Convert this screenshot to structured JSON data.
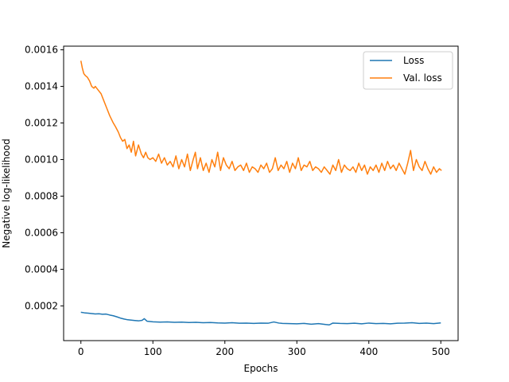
{
  "chart_data": {
    "type": "line",
    "title": "",
    "xlabel": "Epochs",
    "ylabel": "Negative log-likelihood",
    "xlim": [
      -24,
      524
    ],
    "ylim": [
      1e-05,
      0.00162
    ],
    "x_ticks": [
      0,
      100,
      200,
      300,
      400,
      500
    ],
    "y_ticks": [
      0.0002,
      0.0004,
      0.0006,
      0.0008,
      0.001,
      0.0012,
      0.0014,
      0.0016
    ],
    "x_tick_labels": [
      "0",
      "100",
      "200",
      "300",
      "400",
      "500"
    ],
    "y_tick_labels": [
      "0.0002",
      "0.0004",
      "0.0006",
      "0.0008",
      "0.0010",
      "0.0012",
      "0.0014",
      "0.0016"
    ],
    "grid": false,
    "legend_position": "top-right",
    "series": [
      {
        "name": "Loss",
        "color": "#1f77b4",
        "x": [
          0,
          5,
          10,
          15,
          20,
          25,
          30,
          35,
          40,
          45,
          50,
          55,
          60,
          65,
          70,
          75,
          80,
          85,
          88,
          92,
          100,
          110,
          120,
          130,
          140,
          150,
          160,
          170,
          180,
          190,
          200,
          210,
          220,
          230,
          240,
          250,
          260,
          268,
          275,
          280,
          290,
          300,
          310,
          320,
          330,
          340,
          345,
          350,
          360,
          370,
          380,
          390,
          400,
          410,
          420,
          430,
          440,
          450,
          460,
          470,
          480,
          490,
          500
        ],
        "y": [
          0.000165,
          0.000162,
          0.00016,
          0.000158,
          0.000156,
          0.000157,
          0.000154,
          0.000155,
          0.00015,
          0.000146,
          0.00014,
          0.000133,
          0.000128,
          0.000124,
          0.000122,
          0.00012,
          0.000118,
          0.000121,
          0.00013,
          0.000116,
          0.000113,
          0.000111,
          0.000112,
          0.00011,
          0.000111,
          0.000109,
          0.00011,
          0.000108,
          0.000109,
          0.000107,
          0.000106,
          0.000108,
          0.000105,
          0.000106,
          0.000104,
          0.000106,
          0.000105,
          0.000112,
          0.000106,
          0.000104,
          0.000103,
          0.000102,
          0.000104,
          0.0001,
          0.000103,
          9.8e-05,
          9.6e-05,
          0.000106,
          0.000104,
          0.000103,
          0.000105,
          0.000102,
          0.000106,
          0.000103,
          0.000104,
          0.000102,
          0.000105,
          0.000106,
          0.000108,
          0.000104,
          0.000106,
          0.000103,
          0.000107
        ]
      },
      {
        "name": "Val. loss",
        "color": "#ff7f0e",
        "x": [
          0,
          2,
          4,
          6,
          9,
          12,
          15,
          18,
          20,
          24,
          28,
          32,
          36,
          40,
          45,
          48,
          52,
          55,
          58,
          61,
          64,
          67,
          70,
          73,
          76,
          80,
          84,
          87,
          90,
          93,
          96,
          100,
          104,
          108,
          112,
          116,
          120,
          124,
          128,
          132,
          136,
          140,
          144,
          148,
          152,
          156,
          159,
          162,
          166,
          170,
          174,
          178,
          182,
          186,
          190,
          194,
          198,
          202,
          206,
          210,
          214,
          218,
          222,
          226,
          230,
          234,
          238,
          242,
          246,
          250,
          254,
          258,
          262,
          266,
          270,
          274,
          278,
          282,
          286,
          290,
          294,
          298,
          302,
          306,
          310,
          314,
          318,
          322,
          326,
          330,
          334,
          338,
          342,
          346,
          350,
          354,
          358,
          362,
          366,
          370,
          374,
          378,
          382,
          386,
          390,
          394,
          398,
          402,
          406,
          410,
          414,
          418,
          422,
          426,
          430,
          434,
          438,
          442,
          446,
          450,
          454,
          458,
          462,
          466,
          470,
          474,
          478,
          482,
          486,
          490,
          494,
          498,
          501
        ],
        "y": [
          0.00154,
          0.0015,
          0.00147,
          0.00146,
          0.00145,
          0.00143,
          0.0014,
          0.00139,
          0.0014,
          0.00138,
          0.00136,
          0.00132,
          0.00128,
          0.00124,
          0.0012,
          0.00118,
          0.00115,
          0.00112,
          0.0011,
          0.00111,
          0.00106,
          0.00108,
          0.00104,
          0.0011,
          0.00102,
          0.00108,
          0.00103,
          0.00101,
          0.00104,
          0.00101,
          0.001,
          0.00101,
          0.00099,
          0.00103,
          0.00098,
          0.00101,
          0.00097,
          0.00099,
          0.00096,
          0.00102,
          0.00095,
          0.001,
          0.00096,
          0.00103,
          0.00094,
          0.001,
          0.00104,
          0.00095,
          0.00101,
          0.00094,
          0.00098,
          0.00093,
          0.001,
          0.00096,
          0.00104,
          0.00094,
          0.00101,
          0.00097,
          0.00095,
          0.00099,
          0.00094,
          0.00096,
          0.00097,
          0.00094,
          0.00098,
          0.00093,
          0.00096,
          0.00095,
          0.00093,
          0.00097,
          0.00095,
          0.00098,
          0.00093,
          0.00095,
          0.00101,
          0.00094,
          0.00097,
          0.00095,
          0.00099,
          0.00093,
          0.00098,
          0.00095,
          0.00101,
          0.00094,
          0.00097,
          0.00096,
          0.00099,
          0.00094,
          0.00096,
          0.00095,
          0.00093,
          0.00096,
          0.00094,
          0.00092,
          0.00097,
          0.00094,
          0.001,
          0.00093,
          0.00097,
          0.00095,
          0.00094,
          0.00096,
          0.00093,
          0.00098,
          0.00094,
          0.00097,
          0.00092,
          0.00096,
          0.00094,
          0.00097,
          0.00093,
          0.00098,
          0.00094,
          0.00099,
          0.00095,
          0.00097,
          0.00094,
          0.00098,
          0.00095,
          0.00092,
          0.00098,
          0.00105,
          0.00094,
          0.001,
          0.00096,
          0.00094,
          0.00099,
          0.00095,
          0.00092,
          0.00096,
          0.00093,
          0.00095,
          0.00094
        ]
      }
    ]
  }
}
